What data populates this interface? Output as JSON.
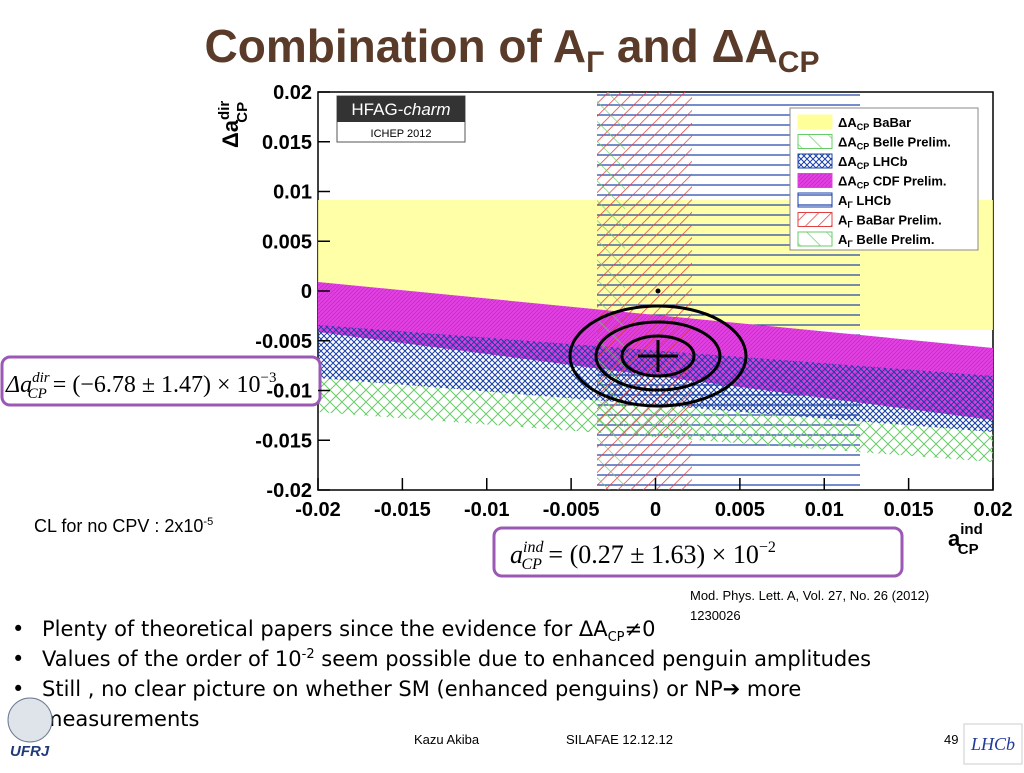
{
  "title": {
    "main": "Combination of A",
    "sub1": "Γ",
    "mid": " and ΔA",
    "sub2": "CP"
  },
  "chart_data": {
    "type": "band",
    "xlim": [
      -0.02,
      0.02
    ],
    "xticks": [
      -0.02,
      -0.015,
      -0.01,
      -0.005,
      0,
      0.005,
      0.01,
      0.015,
      0.02
    ],
    "ylim": [
      -0.02,
      0.02
    ],
    "yticks": [
      -0.02,
      -0.015,
      -0.01,
      -0.005,
      0,
      0.005,
      0.01,
      0.015,
      0.02
    ],
    "xlabel": {
      "base": "a",
      "sup": "ind",
      "sub": "CP"
    },
    "ylabel": {
      "base": "Δa",
      "sup": "dir",
      "sub": "CP"
    },
    "badge": {
      "name": "HFAG-",
      "italic": "charm",
      "event": "ICHEP 2012"
    },
    "legend": [
      {
        "sym": "ΔA",
        "sub": "CP",
        "name": " BaBar",
        "color": "#ffff99"
      },
      {
        "sym": "ΔA",
        "sub": "CP",
        "name": " Belle Prelim.",
        "color": "#66cc66"
      },
      {
        "sym": "ΔA",
        "sub": "CP",
        "name": " LHCb",
        "color": "#1a3fa8"
      },
      {
        "sym": "ΔA",
        "sub": "CP",
        "name": " CDF Prelim.",
        "color": "#e040e0"
      },
      {
        "sym": "A",
        "sub": "Γ",
        "name": " LHCb",
        "color": "#1a3fa8"
      },
      {
        "sym": "A",
        "sub": "Γ",
        "name": " BaBar Prelim.",
        "color": "#e04040"
      },
      {
        "sym": "A",
        "sub": "Γ",
        "name": " Belle Prelim.",
        "color": "#66cc66"
      }
    ]
  },
  "result_dir": {
    "lhs": "Δa",
    "sup": "dir",
    "sub": "CP",
    "rhs": " = (−6.78 ± 1.47) × 10",
    "exp": "−3"
  },
  "result_ind": {
    "lhs": "a",
    "sup": "ind",
    "sub": "CP",
    "rhs": " = (0.27 ± 1.63) × 10",
    "exp": "−2"
  },
  "cl_note": {
    "text": "CL for no CPV : 2x10",
    "exp": "-5"
  },
  "reference": {
    "line1": "Mod. Phys. Lett. A, Vol. 27, No. 26 (2012)",
    "line2": "1230026"
  },
  "bullets": [
    {
      "text": "Plenty of theoretical papers since the evidence for ΔA",
      "sub": "CP",
      "tail": "≠0"
    },
    {
      "text": "Values of the order of 10",
      "sup": "-2",
      "tail": " seem possible due to enhanced penguin amplitudes"
    },
    {
      "text": "Still , no clear picture on whether SM (enhanced penguins) or NP",
      "arrow": "➔",
      "tail": " more",
      "line2": "measurements"
    }
  ],
  "footer": {
    "author": "Kazu Akiba",
    "event": "SILAFAE  12.12.12",
    "page": "49",
    "logo_left": "UFRJ",
    "logo_right": "LHCb"
  }
}
